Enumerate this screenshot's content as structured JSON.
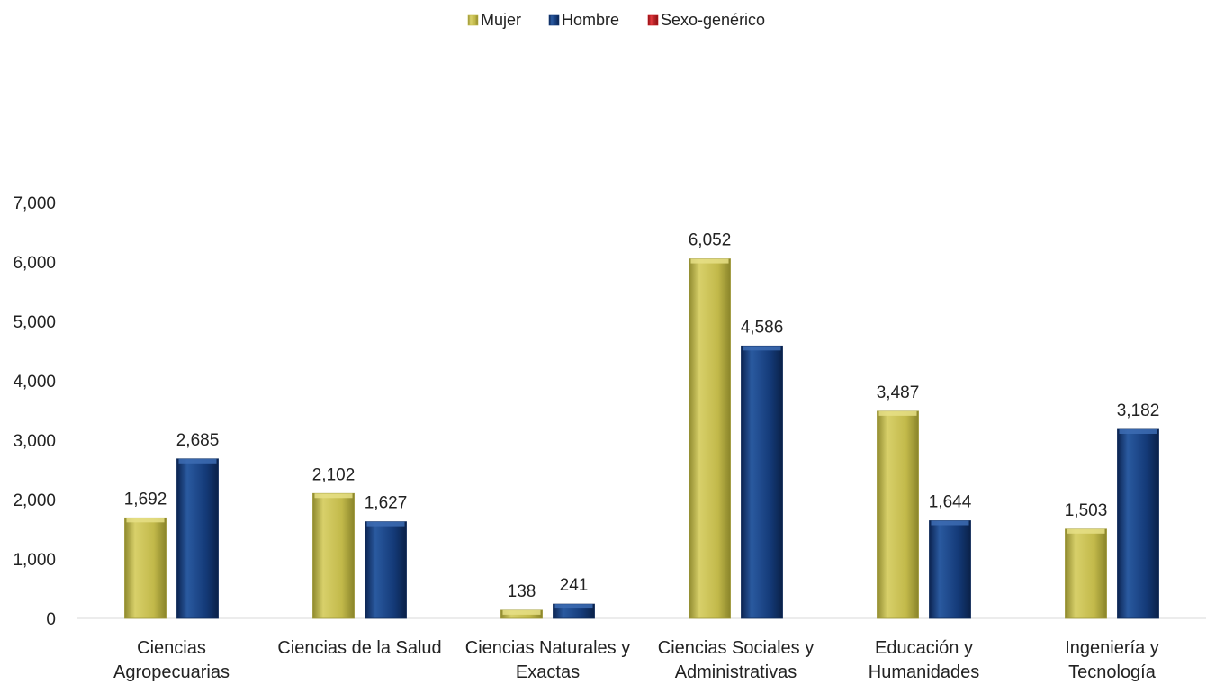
{
  "chart_data": {
    "type": "bar",
    "title": "",
    "xlabel": "",
    "ylabel": "",
    "ylim": [
      0,
      7000
    ],
    "yticks": [
      0,
      1000,
      2000,
      3000,
      4000,
      5000,
      6000,
      7000
    ],
    "ytick_labels": [
      "0",
      "1,000",
      "2,000",
      "3,000",
      "4,000",
      "5,000",
      "6,000",
      "7,000"
    ],
    "grid": false,
    "legend_position": "top-center",
    "categories": [
      [
        "Ciencias",
        "Agropecuarias"
      ],
      [
        "Ciencias de la Salud"
      ],
      [
        "Ciencias Naturales y",
        "Exactas"
      ],
      [
        "Ciencias Sociales y",
        "Administrativas"
      ],
      [
        "Educación y",
        "Humanidades"
      ],
      [
        "Ingeniería y",
        "Tecnología"
      ]
    ],
    "series": [
      {
        "name": "Mujer",
        "color": "#c2b94a",
        "values": [
          1692,
          2102,
          138,
          6052,
          3487,
          1503
        ],
        "labels": [
          "1,692",
          "2,102",
          "138",
          "6,052",
          "3,487",
          "1,503"
        ]
      },
      {
        "name": "Hombre",
        "color": "#143a78",
        "values": [
          2685,
          1627,
          241,
          4586,
          1644,
          3182
        ],
        "labels": [
          "2,685",
          "1,627",
          "241",
          "4,586",
          "1,644",
          "3,182"
        ]
      },
      {
        "name": "Sexo-genérico",
        "color": "#c4161c",
        "values": [
          0,
          0,
          0,
          0,
          0,
          0
        ],
        "labels": []
      }
    ]
  }
}
